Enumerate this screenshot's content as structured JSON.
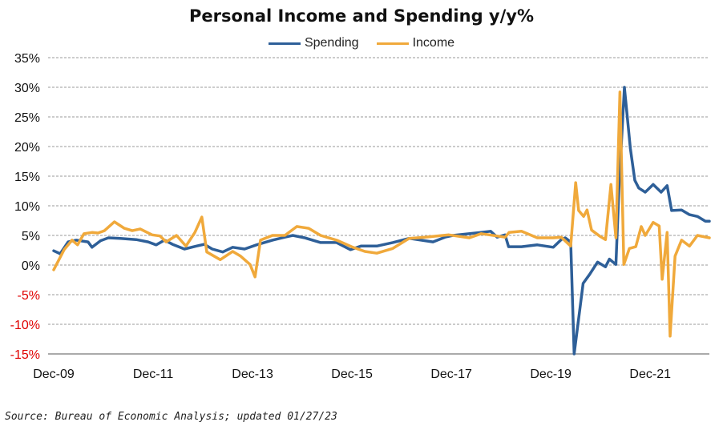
{
  "chart_data": {
    "type": "line",
    "title": "Personal Income and Spending y/y%",
    "xlabel": "",
    "ylabel": "",
    "ylim": [
      -15,
      35
    ],
    "xlim": [
      2009.92,
      2023.11
    ],
    "grid": true,
    "legend_position": "top-center",
    "y_ticks": [
      {
        "value": 35,
        "label": "35%"
      },
      {
        "value": 30,
        "label": "30%"
      },
      {
        "value": 25,
        "label": "25%"
      },
      {
        "value": 20,
        "label": "20%"
      },
      {
        "value": 15,
        "label": "15%"
      },
      {
        "value": 10,
        "label": "10%"
      },
      {
        "value": 5,
        "label": "5%"
      },
      {
        "value": 0,
        "label": "0%"
      },
      {
        "value": -5,
        "label": "-5%"
      },
      {
        "value": -10,
        "label": "-10%"
      },
      {
        "value": -15,
        "label": "-15%"
      }
    ],
    "x_ticks": [
      {
        "value": 2009.92,
        "label": "Dec-09"
      },
      {
        "value": 2011.92,
        "label": "Dec-11"
      },
      {
        "value": 2013.92,
        "label": "Dec-13"
      },
      {
        "value": 2015.92,
        "label": "Dec-15"
      },
      {
        "value": 2017.92,
        "label": "Dec-17"
      },
      {
        "value": 2019.92,
        "label": "Dec-19"
      },
      {
        "value": 2021.92,
        "label": "Dec-21"
      }
    ],
    "negative_label_color": "#e00000",
    "series": [
      {
        "name": "Spending",
        "color": "#2e5f98",
        "points": [
          [
            2009.92,
            2.4
          ],
          [
            2010.05,
            1.9
          ],
          [
            2010.21,
            3.9
          ],
          [
            2010.37,
            4.2
          ],
          [
            2010.61,
            3.9
          ],
          [
            2010.69,
            3.0
          ],
          [
            2010.86,
            4.1
          ],
          [
            2011.02,
            4.6
          ],
          [
            2011.26,
            4.5
          ],
          [
            2011.58,
            4.3
          ],
          [
            2011.82,
            3.9
          ],
          [
            2011.98,
            3.4
          ],
          [
            2012.15,
            4.2
          ],
          [
            2012.31,
            3.5
          ],
          [
            2012.55,
            2.7
          ],
          [
            2012.79,
            3.2
          ],
          [
            2012.95,
            3.5
          ],
          [
            2013.11,
            2.7
          ],
          [
            2013.32,
            2.2
          ],
          [
            2013.52,
            3.0
          ],
          [
            2013.76,
            2.7
          ],
          [
            2014.0,
            3.4
          ],
          [
            2014.32,
            4.2
          ],
          [
            2014.57,
            4.7
          ],
          [
            2014.73,
            5.0
          ],
          [
            2014.97,
            4.6
          ],
          [
            2015.29,
            3.8
          ],
          [
            2015.61,
            3.8
          ],
          [
            2015.89,
            2.6
          ],
          [
            2016.1,
            3.2
          ],
          [
            2016.42,
            3.2
          ],
          [
            2016.74,
            3.8
          ],
          [
            2017.07,
            4.5
          ],
          [
            2017.55,
            3.9
          ],
          [
            2017.79,
            4.7
          ],
          [
            2017.95,
            5.0
          ],
          [
            2018.52,
            5.5
          ],
          [
            2018.71,
            5.7
          ],
          [
            2018.84,
            4.7
          ],
          [
            2019.0,
            5.1
          ],
          [
            2019.07,
            3.1
          ],
          [
            2019.33,
            3.1
          ],
          [
            2019.65,
            3.4
          ],
          [
            2019.97,
            3.0
          ],
          [
            2020.13,
            4.3
          ],
          [
            2020.21,
            4.6
          ],
          [
            2020.32,
            3.9
          ],
          [
            2020.39,
            -15
          ],
          [
            2020.57,
            -3.1
          ],
          [
            2020.7,
            -1.6
          ],
          [
            2020.86,
            0.5
          ],
          [
            2021.02,
            -0.3
          ],
          [
            2021.1,
            1.0
          ],
          [
            2021.23,
            0.1
          ],
          [
            2021.29,
            12.6
          ],
          [
            2021.4,
            30
          ],
          [
            2021.52,
            19.7
          ],
          [
            2021.61,
            14.3
          ],
          [
            2021.69,
            13.0
          ],
          [
            2021.82,
            12.3
          ],
          [
            2021.98,
            13.6
          ],
          [
            2022.14,
            12.3
          ],
          [
            2022.26,
            13.4
          ],
          [
            2022.35,
            9.2
          ],
          [
            2022.55,
            9.3
          ],
          [
            2022.71,
            8.5
          ],
          [
            2022.87,
            8.2
          ],
          [
            2023.03,
            7.4
          ],
          [
            2023.11,
            7.4
          ]
        ]
      },
      {
        "name": "Income",
        "color": "#f0a93b",
        "points": [
          [
            2009.92,
            -0.8
          ],
          [
            2010.13,
            2.6
          ],
          [
            2010.29,
            4.2
          ],
          [
            2010.4,
            3.4
          ],
          [
            2010.53,
            5.3
          ],
          [
            2010.69,
            5.5
          ],
          [
            2010.81,
            5.4
          ],
          [
            2010.94,
            5.8
          ],
          [
            2011.14,
            7.3
          ],
          [
            2011.34,
            6.2
          ],
          [
            2011.5,
            5.8
          ],
          [
            2011.66,
            6.1
          ],
          [
            2011.9,
            5.1
          ],
          [
            2012.06,
            4.9
          ],
          [
            2012.18,
            3.9
          ],
          [
            2012.39,
            5.0
          ],
          [
            2012.58,
            3.2
          ],
          [
            2012.76,
            5.5
          ],
          [
            2012.9,
            8.1
          ],
          [
            2013.0,
            2.2
          ],
          [
            2013.27,
            0.9
          ],
          [
            2013.52,
            2.3
          ],
          [
            2013.68,
            1.5
          ],
          [
            2013.87,
            0.1
          ],
          [
            2013.97,
            -2.0
          ],
          [
            2014.08,
            4.2
          ],
          [
            2014.32,
            5.0
          ],
          [
            2014.57,
            5.0
          ],
          [
            2014.81,
            6.5
          ],
          [
            2015.05,
            6.2
          ],
          [
            2015.29,
            5.0
          ],
          [
            2015.61,
            4.2
          ],
          [
            2015.94,
            3.0
          ],
          [
            2016.18,
            2.3
          ],
          [
            2016.42,
            2.0
          ],
          [
            2016.74,
            2.8
          ],
          [
            2017.07,
            4.5
          ],
          [
            2017.39,
            4.7
          ],
          [
            2017.87,
            5.1
          ],
          [
            2018.28,
            4.6
          ],
          [
            2018.52,
            5.3
          ],
          [
            2019.0,
            4.7
          ],
          [
            2019.08,
            5.5
          ],
          [
            2019.33,
            5.7
          ],
          [
            2019.65,
            4.6
          ],
          [
            2019.97,
            4.6
          ],
          [
            2020.13,
            4.7
          ],
          [
            2020.32,
            3.2
          ],
          [
            2020.42,
            13.9
          ],
          [
            2020.48,
            9.2
          ],
          [
            2020.58,
            8.2
          ],
          [
            2020.65,
            9.3
          ],
          [
            2020.74,
            5.9
          ],
          [
            2020.9,
            4.9
          ],
          [
            2021.02,
            4.3
          ],
          [
            2021.13,
            13.6
          ],
          [
            2021.23,
            4.6
          ],
          [
            2021.31,
            29.2
          ],
          [
            2021.39,
            0.1
          ],
          [
            2021.5,
            2.8
          ],
          [
            2021.63,
            3.1
          ],
          [
            2021.74,
            6.5
          ],
          [
            2021.82,
            5.0
          ],
          [
            2021.98,
            7.2
          ],
          [
            2022.1,
            6.6
          ],
          [
            2022.16,
            -2.4
          ],
          [
            2022.26,
            5.5
          ],
          [
            2022.32,
            -12
          ],
          [
            2022.42,
            1.5
          ],
          [
            2022.55,
            4.2
          ],
          [
            2022.71,
            3.2
          ],
          [
            2022.87,
            5.0
          ],
          [
            2023.11,
            4.6
          ]
        ]
      }
    ]
  },
  "source": "Source: Bureau of Economic Analysis; updated 01/27/23"
}
